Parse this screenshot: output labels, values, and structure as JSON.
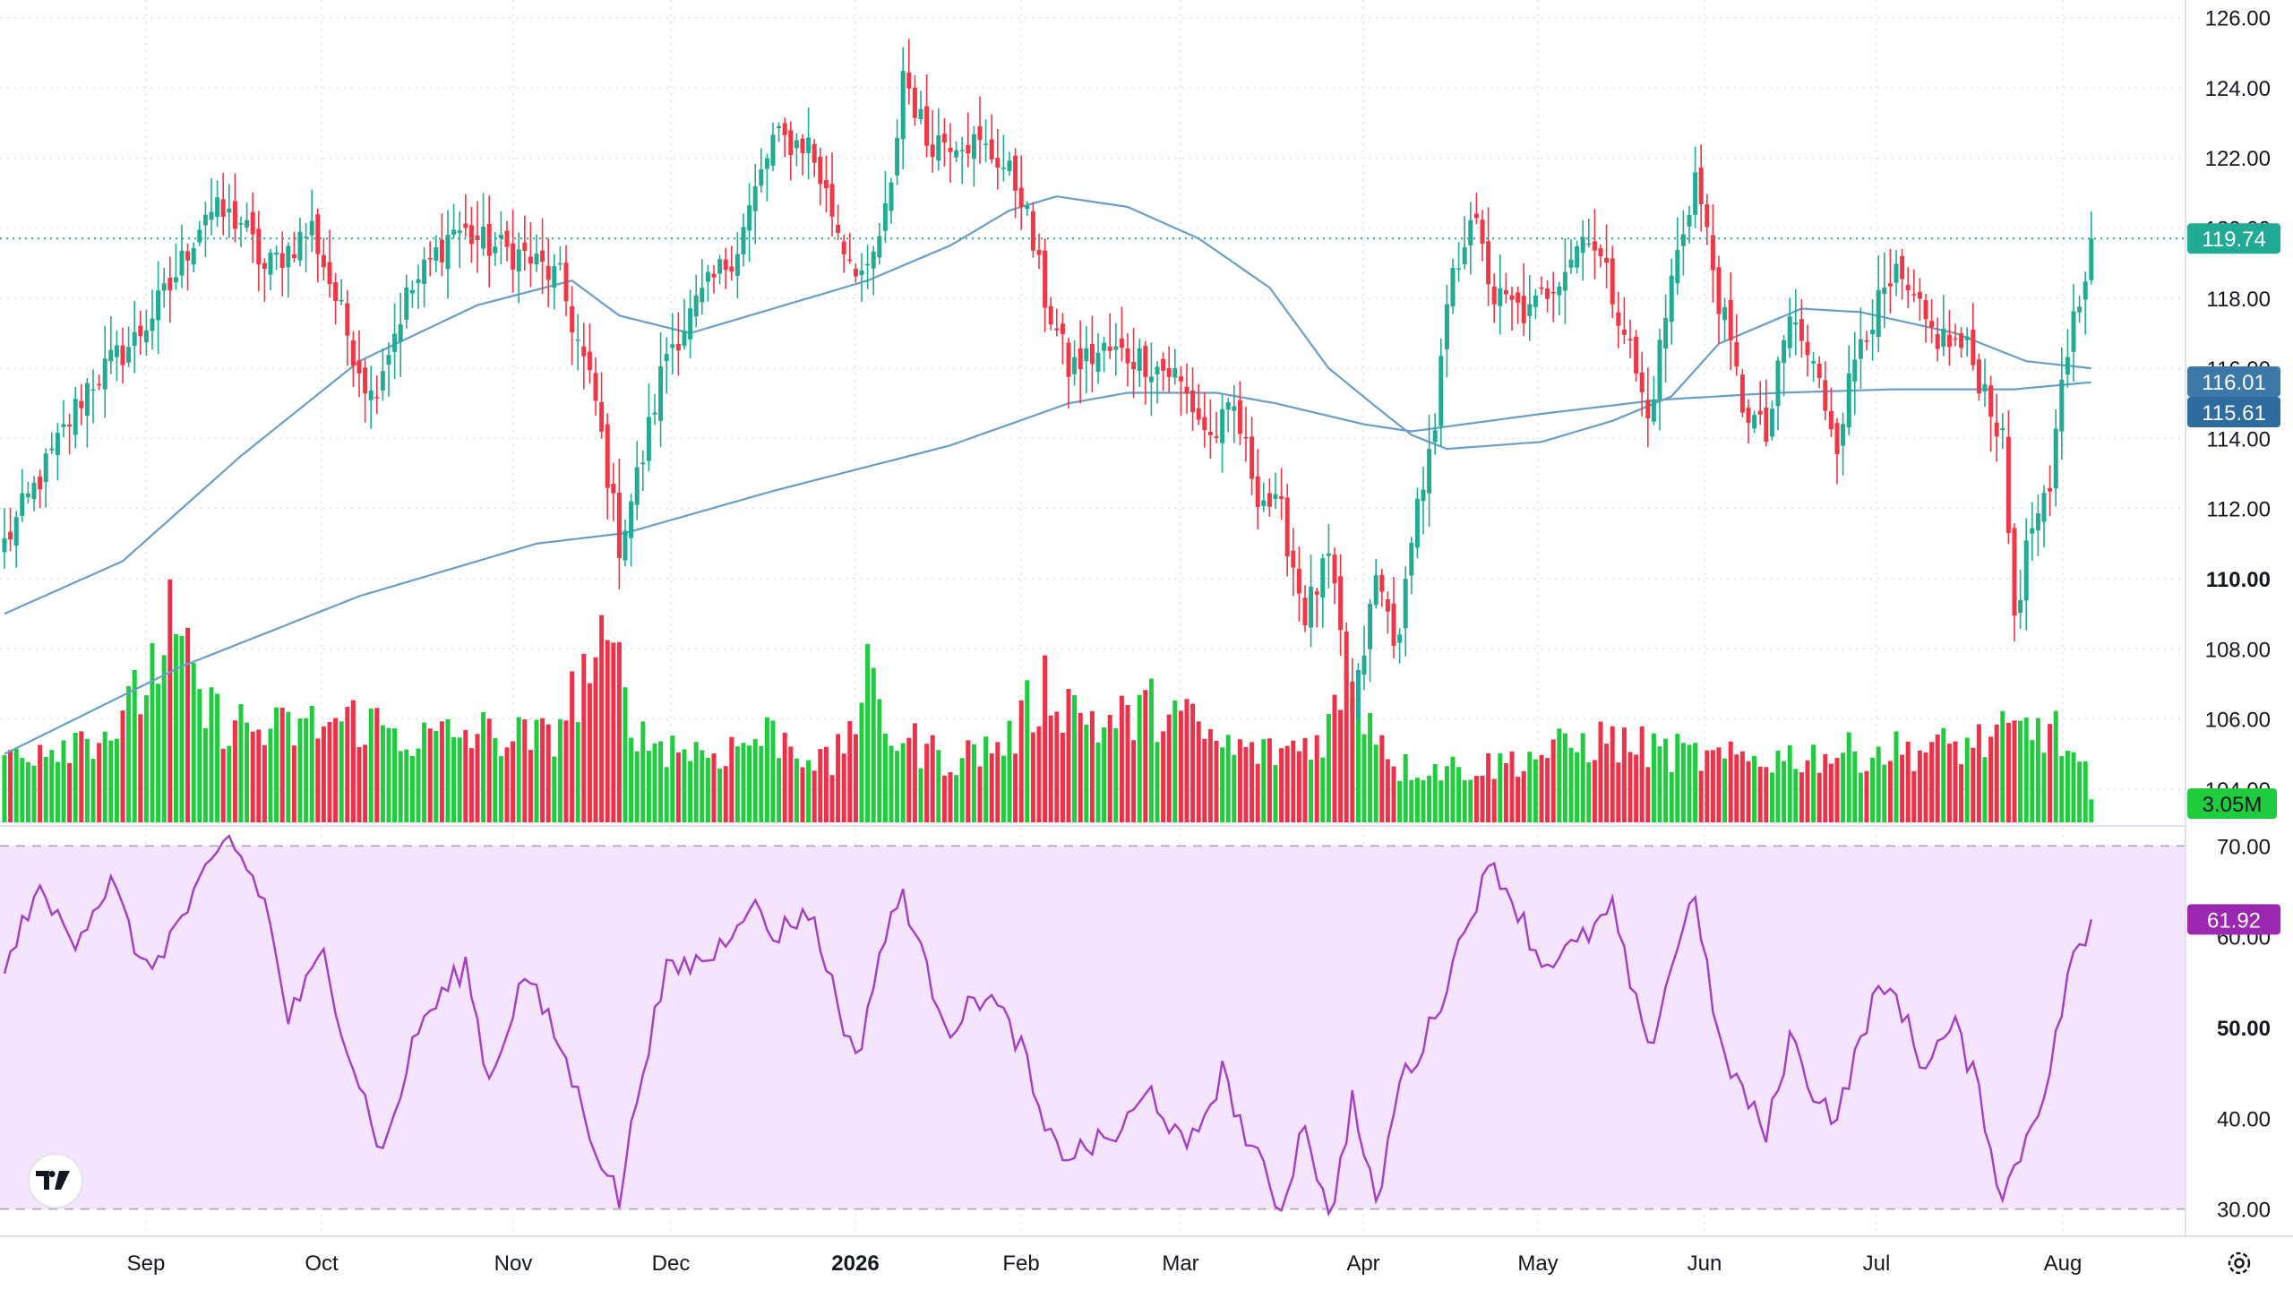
{
  "chart_data": {
    "type": "candlestick",
    "symbol": "",
    "last_price_label": "119.74",
    "ma_labels": [
      "116.01",
      "115.61"
    ],
    "volume_label": "3.05M",
    "rsi_label": "61.92",
    "price_axis": {
      "ticks": [
        "104.00",
        "106.00",
        "108.00",
        "110.00",
        "112.00",
        "114.00",
        "116.00",
        "118.00",
        "120.00",
        "122.00",
        "124.00",
        "126.00"
      ],
      "ylim": [
        103,
        126.5
      ]
    },
    "rsi_axis": {
      "ticks": [
        "30.00",
        "40.00",
        "50.00",
        "60.00",
        "70.00"
      ],
      "ylim": [
        27,
        72
      ],
      "band": [
        30,
        70
      ]
    },
    "time_axis": {
      "labels": [
        "Sep",
        "Oct",
        "Nov",
        "Dec",
        "2026",
        "Feb",
        "Mar",
        "Apr",
        "May",
        "Jun",
        "Jul",
        "Aug"
      ],
      "bold": [
        "2026"
      ]
    },
    "price_waypoints": [
      [
        0,
        111.0
      ],
      [
        8,
        113.5
      ],
      [
        14,
        115.5
      ],
      [
        22,
        116.8
      ],
      [
        28,
        118.3
      ],
      [
        34,
        120.5
      ],
      [
        40,
        120.2
      ],
      [
        44,
        118.8
      ],
      [
        52,
        120.0
      ],
      [
        58,
        117.0
      ],
      [
        62,
        115.2
      ],
      [
        68,
        118.0
      ],
      [
        76,
        120.0
      ],
      [
        82,
        119.5
      ],
      [
        88,
        119.2
      ],
      [
        94,
        118.5
      ],
      [
        100,
        115.0
      ],
      [
        104,
        111.0
      ],
      [
        108,
        113.5
      ],
      [
        112,
        116.5
      ],
      [
        118,
        118.0
      ],
      [
        124,
        119.5
      ],
      [
        130,
        122.5
      ],
      [
        136,
        122.4
      ],
      [
        142,
        119.5
      ],
      [
        146,
        118.5
      ],
      [
        150,
        121.0
      ],
      [
        152,
        124.5
      ],
      [
        156,
        122.5
      ],
      [
        162,
        122.6
      ],
      [
        168,
        122.0
      ],
      [
        172,
        121.0
      ],
      [
        176,
        118.0
      ],
      [
        180,
        116.0
      ],
      [
        186,
        116.5
      ],
      [
        192,
        116.3
      ],
      [
        198,
        115.8
      ],
      [
        204,
        114.0
      ],
      [
        208,
        114.8
      ],
      [
        212,
        112.5
      ],
      [
        216,
        111.8
      ],
      [
        220,
        109.0
      ],
      [
        224,
        110.5
      ],
      [
        228,
        106.0
      ],
      [
        232,
        110.0
      ],
      [
        236,
        108.0
      ],
      [
        238,
        111.5
      ],
      [
        242,
        114.0
      ],
      [
        244,
        117.8
      ],
      [
        248,
        120.5
      ],
      [
        252,
        118.0
      ],
      [
        258,
        117.5
      ],
      [
        264,
        119.0
      ],
      [
        268,
        120.0
      ],
      [
        274,
        117.2
      ],
      [
        278,
        114.5
      ],
      [
        282,
        118.5
      ],
      [
        286,
        121.5
      ],
      [
        290,
        118.0
      ],
      [
        294,
        115.0
      ],
      [
        298,
        114.0
      ],
      [
        302,
        117.5
      ],
      [
        306,
        116.0
      ],
      [
        310,
        114.0
      ],
      [
        314,
        117.0
      ],
      [
        320,
        118.5
      ],
      [
        326,
        117.0
      ],
      [
        332,
        116.5
      ],
      [
        336,
        115.0
      ],
      [
        338,
        113.8
      ],
      [
        340,
        109.0
      ],
      [
        343,
        111.5
      ],
      [
        346,
        112.2
      ],
      [
        348,
        115.8
      ],
      [
        351,
        118.2
      ],
      [
        353,
        119.7
      ]
    ],
    "ma50_waypoints": [
      [
        0,
        109.0
      ],
      [
        20,
        110.5
      ],
      [
        40,
        113.5
      ],
      [
        60,
        116.2
      ],
      [
        80,
        117.8
      ],
      [
        96,
        118.5
      ],
      [
        104,
        117.5
      ],
      [
        116,
        117.0
      ],
      [
        130,
        117.7
      ],
      [
        146,
        118.5
      ],
      [
        160,
        119.5
      ],
      [
        170,
        120.5
      ],
      [
        178,
        120.9
      ],
      [
        190,
        120.6
      ],
      [
        202,
        119.7
      ],
      [
        214,
        118.3
      ],
      [
        224,
        116.0
      ],
      [
        232,
        114.9
      ],
      [
        238,
        114.1
      ],
      [
        244,
        113.7
      ],
      [
        260,
        113.9
      ],
      [
        272,
        114.5
      ],
      [
        282,
        115.2
      ],
      [
        290,
        116.7
      ],
      [
        304,
        117.7
      ],
      [
        314,
        117.6
      ],
      [
        330,
        117.0
      ],
      [
        342,
        116.2
      ],
      [
        353,
        116.0
      ]
    ],
    "ma200_waypoints": [
      [
        0,
        105.0
      ],
      [
        30,
        107.5
      ],
      [
        60,
        109.5
      ],
      [
        90,
        111.0
      ],
      [
        105,
        111.3
      ],
      [
        130,
        112.5
      ],
      [
        160,
        113.8
      ],
      [
        180,
        115.0
      ],
      [
        190,
        115.3
      ],
      [
        205,
        115.3
      ],
      [
        215,
        115.0
      ],
      [
        230,
        114.4
      ],
      [
        238,
        114.2
      ],
      [
        260,
        114.7
      ],
      [
        280,
        115.1
      ],
      [
        300,
        115.3
      ],
      [
        320,
        115.4
      ],
      [
        340,
        115.4
      ],
      [
        353,
        115.6
      ]
    ],
    "rsi_waypoints": [
      [
        0,
        55.5
      ],
      [
        5,
        65.0
      ],
      [
        12,
        60.0
      ],
      [
        18,
        66.0
      ],
      [
        24,
        56.0
      ],
      [
        30,
        62.0
      ],
      [
        38,
        71.0
      ],
      [
        44,
        64.0
      ],
      [
        48,
        51.0
      ],
      [
        54,
        58.0
      ],
      [
        58,
        48.0
      ],
      [
        64,
        36.0
      ],
      [
        70,
        50.0
      ],
      [
        78,
        57.0
      ],
      [
        82,
        44.0
      ],
      [
        88,
        56.0
      ],
      [
        94,
        48.0
      ],
      [
        100,
        37.0
      ],
      [
        104,
        31.0
      ],
      [
        108,
        46.0
      ],
      [
        112,
        56.0
      ],
      [
        120,
        58.0
      ],
      [
        126,
        64.0
      ],
      [
        130,
        60.0
      ],
      [
        136,
        63.0
      ],
      [
        140,
        55.0
      ],
      [
        144,
        46.0
      ],
      [
        148,
        58.0
      ],
      [
        152,
        65.0
      ],
      [
        156,
        56.0
      ],
      [
        160,
        50.0
      ],
      [
        166,
        54.0
      ],
      [
        172,
        48.0
      ],
      [
        176,
        38.0
      ],
      [
        180,
        36.0
      ],
      [
        188,
        38.0
      ],
      [
        194,
        43.0
      ],
      [
        200,
        36.0
      ],
      [
        206,
        45.0
      ],
      [
        210,
        38.0
      ],
      [
        216,
        30.0
      ],
      [
        220,
        40.0
      ],
      [
        224,
        28.5
      ],
      [
        228,
        42.0
      ],
      [
        232,
        30.0
      ],
      [
        236,
        44.0
      ],
      [
        240,
        48.0
      ],
      [
        244,
        55.0
      ],
      [
        248,
        63.0
      ],
      [
        252,
        68.0
      ],
      [
        256,
        63.0
      ],
      [
        260,
        57.0
      ],
      [
        266,
        59.0
      ],
      [
        272,
        63.0
      ],
      [
        278,
        47.0
      ],
      [
        282,
        57.0
      ],
      [
        286,
        65.0
      ],
      [
        290,
        48.0
      ],
      [
        294,
        43.0
      ],
      [
        298,
        38.0
      ],
      [
        302,
        49.0
      ],
      [
        306,
        43.0
      ],
      [
        310,
        40.0
      ],
      [
        316,
        53.0
      ],
      [
        320,
        54.0
      ],
      [
        324,
        46.0
      ],
      [
        330,
        50.0
      ],
      [
        334,
        43.0
      ],
      [
        338,
        31.0
      ],
      [
        342,
        38.0
      ],
      [
        346,
        45.0
      ],
      [
        350,
        59.0
      ],
      [
        352,
        58.0
      ],
      [
        353,
        61.9
      ]
    ],
    "volume_waypoints": [
      [
        0,
        1.0
      ],
      [
        10,
        1.2
      ],
      [
        20,
        1.4
      ],
      [
        28,
        2.8
      ],
      [
        34,
        1.6
      ],
      [
        44,
        1.3
      ],
      [
        60,
        1.5
      ],
      [
        70,
        1.2
      ],
      [
        80,
        1.3
      ],
      [
        92,
        1.2
      ],
      [
        100,
        2.4
      ],
      [
        104,
        2.2
      ],
      [
        108,
        1.2
      ],
      [
        120,
        1.0
      ],
      [
        130,
        1.3
      ],
      [
        140,
        0.8
      ],
      [
        146,
        2.0
      ],
      [
        150,
        1.3
      ],
      [
        160,
        0.9
      ],
      [
        170,
        1.2
      ],
      [
        176,
        2.0
      ],
      [
        186,
        1.4
      ],
      [
        196,
        1.7
      ],
      [
        206,
        1.1
      ],
      [
        214,
        1.0
      ],
      [
        222,
        1.2
      ],
      [
        228,
        2.0
      ],
      [
        236,
        0.8
      ],
      [
        250,
        0.8
      ],
      [
        270,
        1.2
      ],
      [
        290,
        0.9
      ],
      [
        310,
        1.0
      ],
      [
        330,
        1.1
      ],
      [
        346,
        1.4
      ],
      [
        352,
        0.7
      ],
      [
        353,
        0.3
      ]
    ],
    "palette": {
      "up": "#22ab94",
      "down": "#f23645",
      "vol_up": "#1fcc3e",
      "vol_down": "#ee3148",
      "ma": "#6a9ec6",
      "rsi_line": "#a43ec5",
      "rsi_band": "#f4e4fd",
      "last_price_bg": "#22ab94",
      "ma_label_1": "#3c78a8",
      "ma_label_2": "#2e6ca0",
      "rsi_label_bg": "#9c27b0",
      "grid": "#e0e3eb",
      "text": "#131722"
    }
  }
}
